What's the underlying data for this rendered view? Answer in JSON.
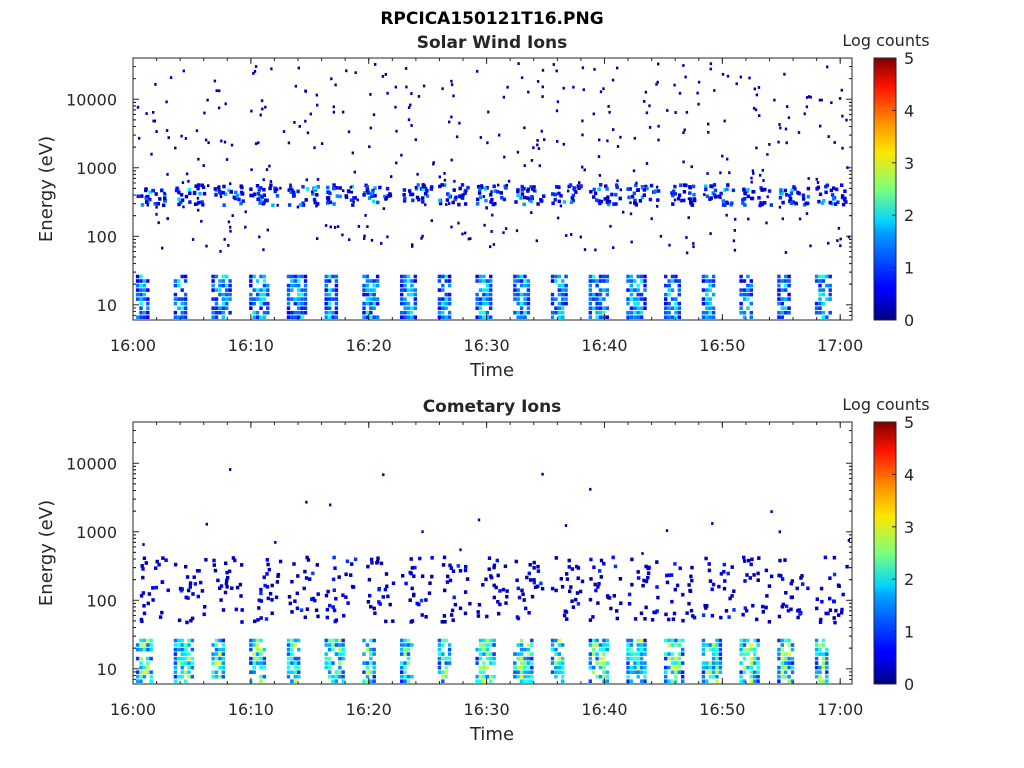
{
  "figure_title": "RPCICA150121T16.PNG",
  "chart_data": [
    {
      "type": "heatmap",
      "title": "Solar Wind Ions",
      "xlabel": "Time",
      "ylabel": "Energy (eV)",
      "xticks": [
        "16:00",
        "16:10",
        "16:20",
        "16:30",
        "16:40",
        "16:50",
        "17:00"
      ],
      "xlim": [
        "16:00",
        "17:01"
      ],
      "yscale": "log",
      "yticks": [
        10,
        100,
        1000,
        10000
      ],
      "ytick_labels": [
        "10",
        "100",
        "1000",
        "10000"
      ],
      "ylim": [
        6,
        40000
      ],
      "colorbar": {
        "label": "Log counts",
        "range": [
          0,
          5
        ],
        "ticks": [
          "0",
          "1",
          "2",
          "3",
          "4",
          "5"
        ],
        "colormap": "jet"
      },
      "band_period_minutes": 3.2,
      "low_energy_band": {
        "energy_range_eV": [
          7,
          28
        ],
        "log_counts_peak": 2.0
      },
      "mid_energy_band": {
        "energy_range_eV": [
          300,
          600
        ],
        "log_counts_peak": 2.0
      },
      "scatter_counts": {
        "energy_range_eV": [
          60,
          35000
        ],
        "log_counts": 0.2
      }
    },
    {
      "type": "heatmap",
      "title": "Cometary Ions",
      "xlabel": "Time",
      "ylabel": "Energy (eV)",
      "xticks": [
        "16:00",
        "16:10",
        "16:20",
        "16:30",
        "16:40",
        "16:50",
        "17:00"
      ],
      "xlim": [
        "16:00",
        "17:01"
      ],
      "yscale": "log",
      "yticks": [
        10,
        100,
        1000,
        10000
      ],
      "ytick_labels": [
        "10",
        "100",
        "1000",
        "10000"
      ],
      "ylim": [
        6,
        40000
      ],
      "colorbar": {
        "label": "Log counts",
        "range": [
          0,
          5
        ],
        "ticks": [
          "0",
          "1",
          "2",
          "3",
          "4",
          "5"
        ],
        "colormap": "jet"
      },
      "band_period_minutes": 3.2,
      "low_energy_band": {
        "energy_range_eV": [
          7,
          28
        ],
        "log_counts_peak": 3.0
      },
      "mid_energy_band": {
        "energy_range_eV": [
          50,
          450
        ],
        "log_counts_peak": 1.0
      },
      "scatter_counts": {
        "energy_range_eV": [
          500,
          9500
        ],
        "log_counts": 0.2
      }
    }
  ]
}
